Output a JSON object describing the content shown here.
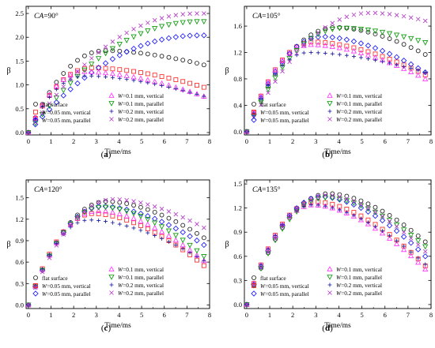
{
  "figure": {
    "panels_order": [
      "a",
      "b",
      "c",
      "d"
    ]
  },
  "legend": {
    "entries": [
      {
        "key": "flat",
        "prefix": "",
        "suffix": "flat surface",
        "marker": "circle",
        "color": "#222222"
      },
      {
        "key": "v005",
        "prefix": "W",
        "suffix": "=0.05 mm, vertical",
        "marker": "square",
        "color": "#ff2a2a"
      },
      {
        "key": "p005",
        "prefix": "W",
        "suffix": "=0.05 mm, parallel",
        "marker": "diamond",
        "color": "#1a1aff"
      },
      {
        "key": "v01",
        "prefix": "W",
        "suffix": "=0.1 mm, vertical",
        "marker": "triangle-up",
        "color": "#ff33ff"
      },
      {
        "key": "p01",
        "prefix": "W",
        "suffix": "=0.1 mm, parallel",
        "marker": "triangle-down",
        "color": "#0a9a0a"
      },
      {
        "key": "v02",
        "prefix": "W",
        "suffix": "=0.2 mm, vertical",
        "marker": "plus",
        "color": "#1b1b9b"
      },
      {
        "key": "p02",
        "prefix": "W",
        "suffix": "=0.2 mm, parallel",
        "marker": "cross",
        "color": "#b43cc8"
      }
    ]
  },
  "chart_data": [
    {
      "type": "scatter",
      "panel_label": "(a)",
      "annotation": "CA=90°",
      "xlabel": "Time/ms",
      "ylabel": "β",
      "xlim": [
        -0.1,
        8.0
      ],
      "ylim": [
        -0.05,
        2.65
      ],
      "xticks": [
        0,
        1,
        2,
        3,
        4,
        5,
        6,
        7,
        8
      ],
      "yticks": [
        0.0,
        0.5,
        1.0,
        1.5,
        2.0,
        2.5
      ],
      "ytick_labels": [
        "0.0",
        "0.5",
        "1.0",
        "1.5",
        "2.0",
        "2.5"
      ],
      "series": [
        {
          "name": "flat",
          "peak": 1.72,
          "t_peak": 3.4,
          "end": 1.42
        },
        {
          "name": "v005",
          "peak": 1.36,
          "t_peak": 2.8,
          "end": 0.95
        },
        {
          "name": "p005",
          "peak": 2.04,
          "t_peak": 7.6,
          "end": 2.04
        },
        {
          "name": "v01",
          "peak": 1.28,
          "t_peak": 2.5,
          "end": 0.76
        },
        {
          "name": "p01",
          "peak": 2.33,
          "t_peak": 7.6,
          "end": 2.33
        },
        {
          "name": "v02",
          "peak": 1.19,
          "t_peak": 2.5,
          "end": 0.76
        },
        {
          "name": "p02",
          "peak": 2.5,
          "t_peak": 7.5,
          "end": 2.5
        }
      ]
    },
    {
      "type": "scatter",
      "panel_label": "(b)",
      "annotation": "CA=105°",
      "xlabel": "Time/ms",
      "ylabel": "β",
      "xlim": [
        -0.1,
        8.0
      ],
      "ylim": [
        -0.05,
        1.9
      ],
      "xticks": [
        0,
        1,
        2,
        3,
        4,
        5,
        6,
        7,
        8
      ],
      "yticks": [
        0.0,
        0.4,
        0.8,
        1.2,
        1.6
      ],
      "ytick_labels": [
        "0.0",
        "0.4",
        "0.8",
        "1.2",
        "1.6"
      ],
      "series": [
        {
          "name": "flat",
          "peak": 1.58,
          "t_peak": 3.9,
          "end": 1.17
        },
        {
          "name": "v005",
          "peak": 1.36,
          "t_peak": 2.9,
          "end": 0.86
        },
        {
          "name": "p005",
          "peak": 1.44,
          "t_peak": 3.3,
          "end": 0.9
        },
        {
          "name": "v01",
          "peak": 1.32,
          "t_peak": 2.8,
          "end": 0.8
        },
        {
          "name": "p01",
          "peak": 1.57,
          "t_peak": 4.2,
          "end": 1.35
        },
        {
          "name": "v02",
          "peak": 1.2,
          "t_peak": 2.7,
          "end": 0.9
        },
        {
          "name": "p02",
          "peak": 1.8,
          "t_peak": 5.4,
          "end": 1.68
        }
      ]
    },
    {
      "type": "scatter",
      "panel_label": "(c)",
      "annotation": "CA=120°",
      "xlabel": "Time/ms",
      "ylabel": "β",
      "xlim": [
        -0.1,
        8.0
      ],
      "ylim": [
        -0.05,
        1.75
      ],
      "xticks": [
        0,
        1,
        2,
        3,
        4,
        5,
        6,
        7,
        8
      ],
      "yticks": [
        0.0,
        0.3,
        0.6,
        0.9,
        1.2,
        1.5
      ],
      "ytick_labels": [
        "0.0",
        "0.3",
        "0.6",
        "0.9",
        "1.2",
        "1.5"
      ],
      "series": [
        {
          "name": "flat",
          "peak": 1.45,
          "t_peak": 3.5,
          "end": 0.94
        },
        {
          "name": "v005",
          "peak": 1.28,
          "t_peak": 2.9,
          "end": 0.55
        },
        {
          "name": "p005",
          "peak": 1.38,
          "t_peak": 3.3,
          "end": 0.84
        },
        {
          "name": "v01",
          "peak": 1.32,
          "t_peak": 3.1,
          "end": 0.62
        },
        {
          "name": "p01",
          "peak": 1.37,
          "t_peak": 3.3,
          "end": 0.68
        },
        {
          "name": "v02",
          "peak": 1.19,
          "t_peak": 2.7,
          "end": 0.62
        },
        {
          "name": "p02",
          "peak": 1.48,
          "t_peak": 3.8,
          "end": 1.08
        }
      ]
    },
    {
      "type": "scatter",
      "panel_label": "(d)",
      "annotation": "CA=135°",
      "xlabel": "Time/ms",
      "ylabel": "β",
      "xlim": [
        -0.1,
        8.0
      ],
      "ylim": [
        -0.05,
        1.55
      ],
      "xticks": [
        0,
        1,
        2,
        3,
        4,
        5,
        6,
        7,
        8
      ],
      "yticks": [
        0.0,
        0.3,
        0.6,
        0.9,
        1.2,
        1.5
      ],
      "ytick_labels": [
        "0.0",
        "0.3",
        "0.6",
        "0.9",
        "1.2",
        "1.5"
      ],
      "series": [
        {
          "name": "flat",
          "peak": 1.38,
          "t_peak": 3.6,
          "end": 0.78
        },
        {
          "name": "v005",
          "peak": 1.28,
          "t_peak": 3.0,
          "end": 0.48
        },
        {
          "name": "p005",
          "peak": 1.34,
          "t_peak": 3.3,
          "end": 0.6
        },
        {
          "name": "v01",
          "peak": 1.24,
          "t_peak": 2.9,
          "end": 0.44
        },
        {
          "name": "p01",
          "peak": 1.33,
          "t_peak": 3.5,
          "end": 0.72
        },
        {
          "name": "v02",
          "peak": 1.24,
          "t_peak": 2.9,
          "end": 0.5
        },
        {
          "name": "p02",
          "peak": 1.36,
          "t_peak": 3.5,
          "end": 0.66
        }
      ]
    }
  ]
}
